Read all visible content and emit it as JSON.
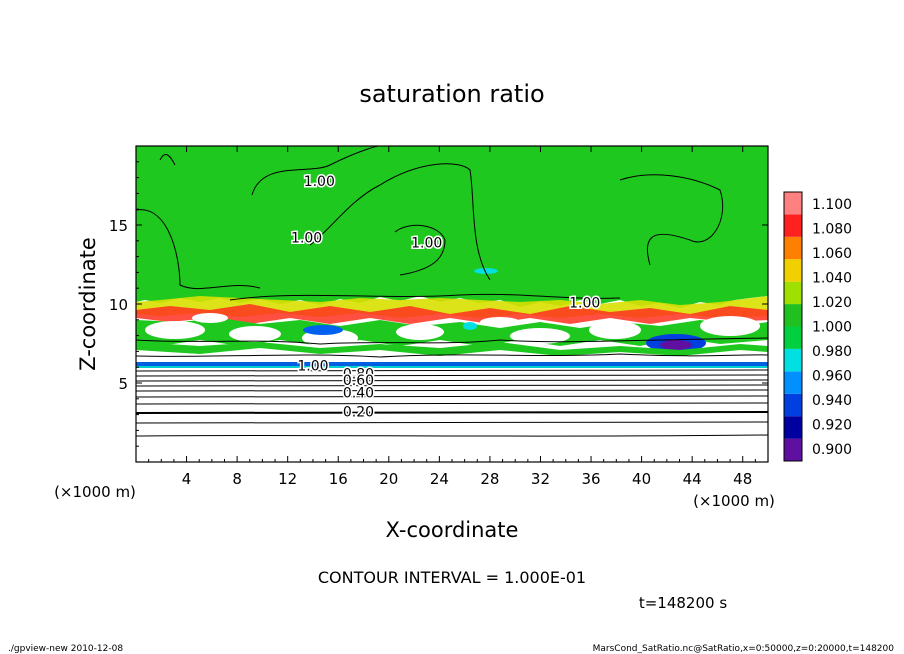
{
  "chart_data": {
    "type": "heatmap",
    "title": "saturation ratio",
    "xlabel": "X-coordinate",
    "ylabel": "Z-coordinate",
    "x_unit_label": "(×1000 m)",
    "y_unit_label": "(×1000 m)",
    "xlim": [
      0,
      50
    ],
    "ylim": [
      0,
      20
    ],
    "x_ticks": [
      4,
      8,
      12,
      16,
      20,
      24,
      28,
      32,
      36,
      40,
      44,
      48
    ],
    "y_ticks": [
      5,
      10,
      15
    ],
    "colorbar": {
      "levels": [
        "0.900",
        "0.920",
        "0.940",
        "0.960",
        "0.980",
        "1.000",
        "1.020",
        "1.040",
        "1.060",
        "1.080",
        "1.100"
      ],
      "colors": [
        "#6010a0",
        "#0000a0",
        "#0040e0",
        "#0090ff",
        "#00e0e0",
        "#00d040",
        "#20c020",
        "#a0e000",
        "#f0d000",
        "#ff8000",
        "#ff2020",
        "#ff8080"
      ]
    },
    "contour_labels": [
      {
        "text": "1.00",
        "x": 14.5,
        "z": 17.8
      },
      {
        "text": "1.00",
        "x": 13.5,
        "z": 14.2
      },
      {
        "text": "1.00",
        "x": 23.0,
        "z": 13.9
      },
      {
        "text": "1.00",
        "x": 35.5,
        "z": 10.1
      },
      {
        "text": "1.00",
        "x": 14.0,
        "z": 6.1
      },
      {
        "text": "0.80",
        "x": 17.6,
        "z": 5.6
      },
      {
        "text": "0.60",
        "x": 17.6,
        "z": 5.2
      },
      {
        "text": "0.40",
        "x": 17.6,
        "z": 4.4
      },
      {
        "text": "0.20",
        "x": 17.6,
        "z": 3.2
      }
    ],
    "contour_interval_text": "CONTOUR INTERVAL = 1.000E-01",
    "time_text": "t=148200 s",
    "footer_left": "./gpview-new   2010-12-08",
    "footer_right": "MarsCond_SatRatio.nc@SatRatio,x=0:50000,z=0:20000,t=148200"
  }
}
